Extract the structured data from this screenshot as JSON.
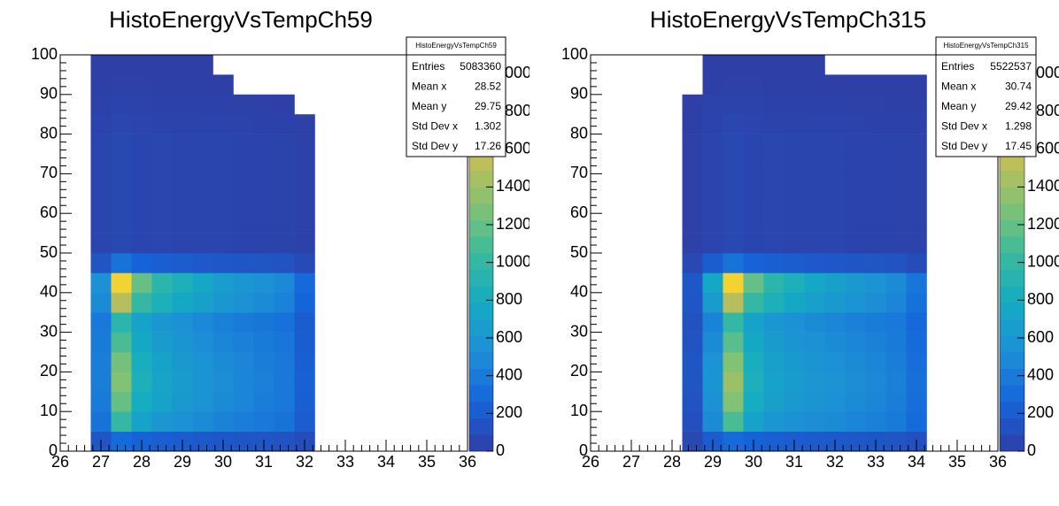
{
  "chart_data": [
    {
      "type": "heatmap",
      "title": "HistoEnergyVsTempCh59",
      "xlim": [
        26,
        36
      ],
      "xticks": [
        26,
        27,
        28,
        29,
        30,
        31,
        32,
        33,
        34,
        35,
        36
      ],
      "ylim": [
        0,
        100
      ],
      "yticks": [
        0,
        10,
        20,
        30,
        40,
        50,
        60,
        70,
        80,
        90,
        100
      ],
      "zlim": [
        0,
        2100
      ],
      "zticks": [
        0,
        200,
        400,
        600,
        800,
        1000,
        1200,
        1400,
        1600,
        1800,
        2000
      ],
      "colors": [
        "#2e3fa6",
        "#1565db",
        "#1d8fd6",
        "#14abc3",
        "#3bbb9c",
        "#86c272",
        "#c9bd55",
        "#f1c73a",
        "#f9f81a"
      ],
      "x_bins": [
        26.75,
        27.25,
        27.75,
        28.25,
        28.75,
        29.25,
        29.75,
        30.25,
        30.75,
        31.25,
        31.75,
        32.25
      ],
      "y_bins": [
        0,
        5,
        10,
        15,
        20,
        25,
        30,
        35,
        40,
        45,
        50,
        55,
        60,
        65,
        70,
        75,
        80,
        85,
        90,
        95,
        100
      ],
      "z": [
        [
          150,
          300,
          250,
          220,
          200,
          180,
          170,
          160,
          150,
          140,
          100
        ],
        [
          350,
          1000,
          700,
          600,
          550,
          500,
          450,
          420,
          380,
          350,
          200
        ],
        [
          400,
          1200,
          800,
          700,
          620,
          560,
          500,
          460,
          420,
          380,
          220
        ],
        [
          420,
          1300,
          850,
          720,
          640,
          580,
          520,
          470,
          430,
          390,
          230
        ],
        [
          420,
          1250,
          820,
          700,
          620,
          560,
          500,
          460,
          420,
          380,
          220
        ],
        [
          400,
          1100,
          760,
          650,
          580,
          520,
          470,
          430,
          400,
          360,
          210
        ],
        [
          380,
          950,
          700,
          600,
          540,
          480,
          440,
          400,
          370,
          340,
          200
        ],
        [
          500,
          1500,
          1000,
          850,
          760,
          680,
          600,
          550,
          500,
          450,
          260
        ],
        [
          550,
          1900,
          1200,
          950,
          850,
          750,
          660,
          600,
          540,
          480,
          280
        ],
        [
          150,
          350,
          250,
          220,
          200,
          180,
          170,
          160,
          150,
          140,
          80
        ],
        [
          40,
          60,
          50,
          45,
          42,
          40,
          38,
          36,
          34,
          32,
          20
        ],
        [
          40,
          60,
          50,
          45,
          42,
          40,
          38,
          36,
          34,
          32,
          20
        ],
        [
          40,
          60,
          50,
          45,
          42,
          40,
          38,
          36,
          34,
          32,
          20
        ],
        [
          40,
          60,
          50,
          45,
          42,
          40,
          38,
          36,
          34,
          32,
          20
        ],
        [
          40,
          60,
          50,
          45,
          42,
          40,
          38,
          36,
          34,
          32,
          20
        ],
        [
          40,
          60,
          50,
          45,
          42,
          40,
          38,
          36,
          34,
          32,
          20
        ],
        [
          30,
          45,
          40,
          35,
          32,
          30,
          28,
          26,
          24,
          22,
          15
        ],
        [
          20,
          30,
          25,
          22,
          20,
          18,
          16,
          14,
          12,
          5,
          0
        ],
        [
          10,
          15,
          12,
          10,
          8,
          6,
          5,
          0,
          0,
          0,
          0
        ],
        [
          3,
          4,
          3,
          2,
          1,
          1,
          0,
          0,
          0,
          0,
          0
        ]
      ],
      "stats": {
        "title": "HistoEnergyVsTempCh59",
        "rows": [
          {
            "label": "Entries",
            "value": 5083360
          },
          {
            "label": "Mean x",
            "value": 28.52
          },
          {
            "label": "Mean y",
            "value": 29.75
          },
          {
            "label": "Std Dev x",
            "value": 1.302
          },
          {
            "label": "Std Dev y",
            "value": 17.26
          }
        ]
      }
    },
    {
      "type": "heatmap",
      "title": "HistoEnergyVsTempCh315",
      "xlim": [
        26,
        36
      ],
      "xticks": [
        26,
        27,
        28,
        29,
        30,
        31,
        32,
        33,
        34,
        35,
        36
      ],
      "ylim": [
        0,
        100
      ],
      "yticks": [
        0,
        10,
        20,
        30,
        40,
        50,
        60,
        70,
        80,
        90,
        100
      ],
      "zlim": [
        0,
        2100
      ],
      "zticks": [
        0,
        200,
        400,
        600,
        800,
        1000,
        1200,
        1400,
        1600,
        1800,
        2000
      ],
      "colors": [
        "#2e3fa6",
        "#1565db",
        "#1d8fd6",
        "#14abc3",
        "#3bbb9c",
        "#86c272",
        "#c9bd55",
        "#f1c73a",
        "#f9f81a"
      ],
      "x_bins": [
        28.25,
        28.75,
        29.25,
        29.75,
        30.25,
        30.75,
        31.25,
        31.75,
        32.25,
        32.75,
        33.25,
        33.75,
        34.25
      ],
      "y_bins": [
        0,
        5,
        10,
        15,
        20,
        25,
        30,
        35,
        40,
        45,
        50,
        55,
        60,
        65,
        70,
        75,
        80,
        85,
        90,
        95,
        100
      ],
      "z": [
        [
          60,
          200,
          300,
          250,
          220,
          200,
          190,
          180,
          170,
          160,
          150,
          120
        ],
        [
          120,
          500,
          1100,
          700,
          600,
          550,
          520,
          500,
          470,
          440,
          400,
          300
        ],
        [
          140,
          550,
          1300,
          800,
          680,
          620,
          580,
          540,
          500,
          460,
          420,
          320
        ],
        [
          150,
          580,
          1400,
          850,
          700,
          640,
          600,
          560,
          520,
          480,
          430,
          330
        ],
        [
          150,
          560,
          1300,
          820,
          680,
          620,
          580,
          540,
          500,
          460,
          420,
          320
        ],
        [
          140,
          500,
          1150,
          760,
          640,
          580,
          540,
          500,
          470,
          440,
          400,
          300
        ],
        [
          130,
          450,
          1000,
          700,
          600,
          540,
          500,
          470,
          440,
          410,
          380,
          280
        ],
        [
          160,
          650,
          1500,
          1000,
          850,
          760,
          680,
          620,
          570,
          520,
          460,
          340
        ],
        [
          170,
          750,
          1900,
          1200,
          950,
          850,
          750,
          680,
          620,
          560,
          500,
          360
        ],
        [
          60,
          200,
          350,
          250,
          220,
          200,
          180,
          170,
          160,
          150,
          140,
          100
        ],
        [
          15,
          40,
          60,
          50,
          45,
          42,
          40,
          38,
          36,
          34,
          32,
          25
        ],
        [
          15,
          40,
          60,
          50,
          45,
          42,
          40,
          38,
          36,
          34,
          32,
          25
        ],
        [
          15,
          40,
          60,
          50,
          45,
          42,
          40,
          38,
          36,
          34,
          32,
          25
        ],
        [
          15,
          40,
          60,
          50,
          45,
          42,
          40,
          38,
          36,
          34,
          32,
          25
        ],
        [
          15,
          40,
          60,
          50,
          45,
          42,
          40,
          38,
          36,
          34,
          32,
          25
        ],
        [
          15,
          40,
          60,
          50,
          45,
          42,
          40,
          38,
          36,
          34,
          32,
          25
        ],
        [
          8,
          35,
          45,
          40,
          35,
          32,
          30,
          28,
          26,
          24,
          22,
          18
        ],
        [
          3,
          25,
          30,
          25,
          22,
          20,
          18,
          16,
          14,
          12,
          10,
          8
        ],
        [
          0,
          10,
          15,
          12,
          10,
          8,
          6,
          5,
          4,
          3,
          2,
          1
        ],
        [
          0,
          3,
          4,
          3,
          2,
          1,
          1,
          0,
          0,
          0,
          0,
          0
        ]
      ],
      "stats": {
        "title": "HistoEnergyVsTempCh315",
        "rows": [
          {
            "label": "Entries",
            "value": 5522537
          },
          {
            "label": "Mean x",
            "value": 30.74
          },
          {
            "label": "Mean y",
            "value": 29.42
          },
          {
            "label": "Std Dev x",
            "value": 1.298
          },
          {
            "label": "Std Dev y",
            "value": 17.45
          }
        ]
      }
    }
  ]
}
